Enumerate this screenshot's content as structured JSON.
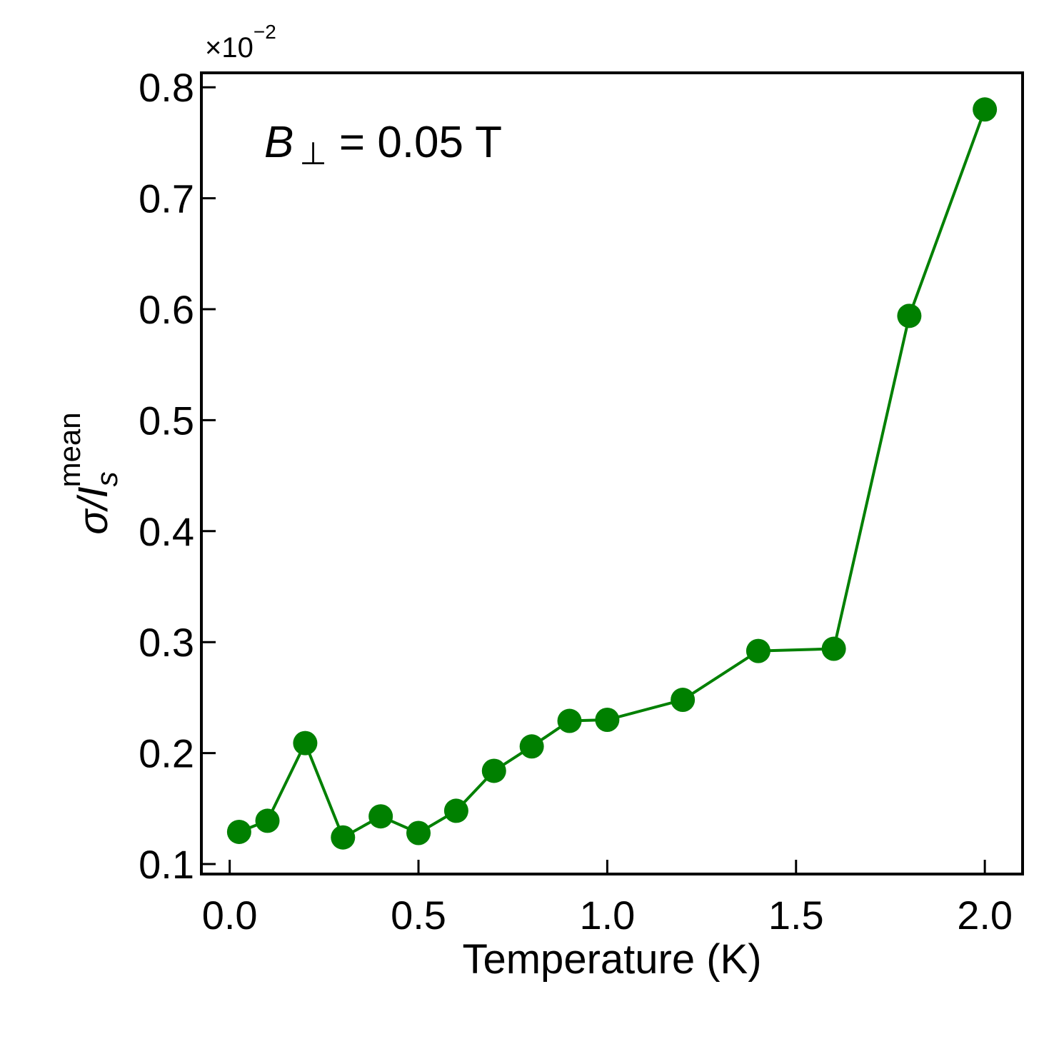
{
  "chart_data": {
    "type": "line",
    "title": "",
    "xlabel": "Temperature (K)",
    "ylabel_main": "σ/I",
    "ylabel_sub": "s",
    "ylabel_sup": "mean",
    "y_multiplier_base": "×10",
    "y_multiplier_exp": "−2",
    "annotation": {
      "symbol": "B",
      "subscript": "⊥",
      "text": " = 0.05 T"
    },
    "xlim": [
      -0.075,
      2.1
    ],
    "ylim": [
      0.091,
      0.813
    ],
    "x_ticks": [
      0.0,
      0.5,
      1.0,
      1.5,
      2.0
    ],
    "x_tick_labels": [
      "0.0",
      "0.5",
      "1.0",
      "1.5",
      "2.0"
    ],
    "y_ticks": [
      0.1,
      0.2,
      0.3,
      0.4,
      0.5,
      0.6,
      0.7,
      0.8
    ],
    "y_tick_labels": [
      "0.1",
      "0.2",
      "0.3",
      "0.4",
      "0.5",
      "0.6",
      "0.7",
      "0.8"
    ],
    "grid": false,
    "color": "#008000",
    "series": [
      {
        "x": [
          0.025,
          0.1,
          0.2,
          0.3,
          0.4,
          0.5,
          0.6,
          0.7,
          0.8,
          0.9,
          1.0,
          1.2,
          1.4,
          1.6,
          1.8,
          2.0
        ],
        "y": [
          0.129,
          0.139,
          0.209,
          0.124,
          0.143,
          0.128,
          0.148,
          0.184,
          0.206,
          0.229,
          0.23,
          0.248,
          0.292,
          0.294,
          0.594,
          0.78
        ]
      }
    ]
  }
}
